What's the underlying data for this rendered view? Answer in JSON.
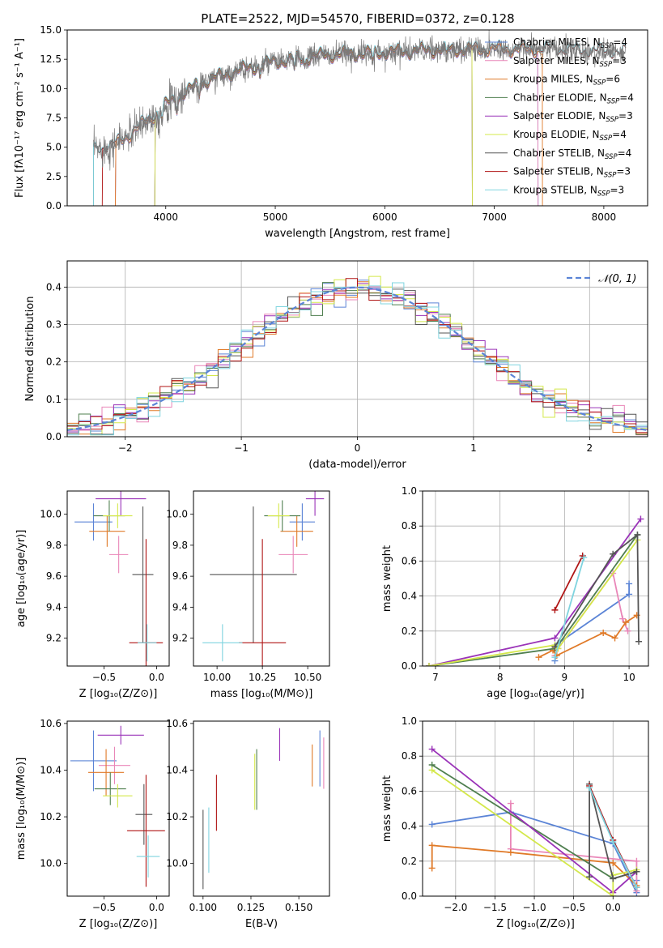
{
  "title": "PLATE=2522, MJD=54570, FIBERID=0372, z=0.128",
  "colors": {
    "chab_miles": "#5b84d6",
    "salp_miles": "#e986b8",
    "krou_miles": "#e07a28",
    "chab_elodie": "#4f7f4f",
    "salp_elodie": "#9a33b8",
    "krou_elodie": "#d4e84a",
    "chab_stelib": "#555555",
    "salp_stelib": "#b01515",
    "krou_stelib": "#7fd4df",
    "spectrum": "#7a7a7a"
  },
  "chart_data": [
    {
      "id": "spectrum",
      "type": "line",
      "xlabel": "wavelength [Angstrom, rest frame]",
      "ylabel": "Flux [fλ10⁻¹⁷ erg cm⁻² s⁻¹ A⁻¹]",
      "xlim": [
        3100,
        8400
      ],
      "ylim": [
        0,
        15
      ],
      "xticks": [
        4000,
        5000,
        6000,
        7000,
        8000
      ],
      "yticks": [
        0.0,
        2.5,
        5.0,
        7.5,
        10.0,
        12.5,
        15.0
      ],
      "legend_position": "top-right",
      "legend": [
        {
          "label": "Chabrier MILES, N",
          "sub": "SSP",
          "suffix": "=4",
          "color": "chab_miles"
        },
        {
          "label": "Salpeter MILES, N",
          "sub": "SSP",
          "suffix": "=3",
          "color": "salp_miles"
        },
        {
          "label": "Kroupa MILES, N",
          "sub": "SSP",
          "suffix": "=6",
          "color": "krou_miles"
        },
        {
          "label": "Chabrier ELODIE, N",
          "sub": "SSP",
          "suffix": "=4",
          "color": "chab_elodie"
        },
        {
          "label": "Salpeter ELODIE, N",
          "sub": "SSP",
          "suffix": "=3",
          "color": "salp_elodie"
        },
        {
          "label": "Kroupa ELODIE, N",
          "sub": "SSP",
          "suffix": "=4",
          "color": "krou_elodie"
        },
        {
          "label": "Chabrier STELIB, N",
          "sub": "SSP",
          "suffix": "=4",
          "color": "chab_stelib"
        },
        {
          "label": "Salpeter STELIB, N",
          "sub": "SSP",
          "suffix": "=3",
          "color": "salp_stelib"
        },
        {
          "label": "Kroupa STELIB, N",
          "sub": "SSP",
          "suffix": "=3",
          "color": "krou_stelib"
        }
      ],
      "continuum": {
        "x": [
          3340,
          3500,
          3700,
          4000,
          4300,
          4600,
          5000,
          5500,
          6000,
          6500,
          7000,
          7500,
          8000,
          8200
        ],
        "y": [
          4.8,
          5.0,
          6.3,
          8.6,
          10.4,
          11.4,
          12.3,
          12.9,
          13.1,
          13.3,
          13.4,
          13.3,
          13.1,
          13.0
        ]
      },
      "data_range": [
        3340,
        8200
      ],
      "model_ranges": {
        "chab_miles": [
          3540,
          7400
        ],
        "salp_miles": [
          3540,
          7400
        ],
        "krou_miles": [
          3540,
          7440
        ],
        "chab_elodie": [
          3900,
          6800
        ],
        "salp_elodie": [
          3900,
          6800
        ],
        "krou_elodie": [
          3900,
          6800
        ],
        "chab_stelib": [
          3340,
          8200
        ],
        "salp_stelib": [
          3420,
          8200
        ],
        "krou_stelib": [
          3340,
          8200
        ]
      }
    },
    {
      "id": "residual_hist",
      "type": "histogram",
      "xlabel": "(data-model)/error",
      "ylabel": "Normed distribution",
      "xlim": [
        -2.5,
        2.5
      ],
      "ylim": [
        0,
        0.47
      ],
      "xticks": [
        -2,
        -1,
        0,
        1,
        2
      ],
      "yticks": [
        0.0,
        0.1,
        0.2,
        0.3,
        0.4
      ],
      "bin_width": 0.1,
      "grid": true,
      "legend_position": "top-right",
      "gaussian_label": "𝒩(0, 1)",
      "gaussian_color": "#5b84d6"
    },
    {
      "id": "age_vs_Z",
      "type": "errorbar",
      "xlabel": "Z [log₁₀(Z/Z⊙)]",
      "ylabel": "age  [log₁₀(age/yr)]",
      "xlim": [
        -0.85,
        0.12
      ],
      "ylim": [
        9.02,
        10.15
      ],
      "xticks": [
        -0.5,
        0.0
      ],
      "yticks": [
        9.2,
        9.4,
        9.6,
        9.8,
        10.0
      ],
      "points": [
        {
          "c": "chab_miles",
          "x": -0.6,
          "xe": 0.18,
          "y": 9.95,
          "ye": 0.12
        },
        {
          "c": "salp_miles",
          "x": -0.36,
          "xe": 0.09,
          "y": 9.74,
          "ye": 0.12
        },
        {
          "c": "krou_miles",
          "x": -0.47,
          "xe": 0.17,
          "y": 9.89,
          "ye": 0.1
        },
        {
          "c": "chab_elodie",
          "x": -0.45,
          "xe": 0.15,
          "y": 9.99,
          "ye": 0.1
        },
        {
          "c": "salp_elodie",
          "x": -0.34,
          "xe": 0.24,
          "y": 10.1,
          "ye": 0.11
        },
        {
          "c": "krou_elodie",
          "x": -0.37,
          "xe": 0.14,
          "y": 9.99,
          "ye": 0.08
        },
        {
          "c": "chab_stelib",
          "x": -0.13,
          "xe": 0.1,
          "y": 9.61,
          "ye": 0.44
        },
        {
          "c": "salp_stelib",
          "x": -0.1,
          "xe": 0.16,
          "y": 9.17,
          "ye": 0.67
        },
        {
          "c": "krou_stelib",
          "x": -0.09,
          "xe": 0.09,
          "y": 9.17,
          "ye": 0.12
        }
      ]
    },
    {
      "id": "age_vs_mass",
      "type": "errorbar",
      "xlabel": "mass [log₁₀(M/M⊙)]",
      "ylabel": "",
      "xlim": [
        9.87,
        10.62
      ],
      "ylim": [
        9.02,
        10.15
      ],
      "xticks": [
        10.0,
        10.25,
        10.5
      ],
      "yticks": [
        9.2,
        9.4,
        9.6,
        9.8,
        10.0
      ],
      "points": [
        {
          "c": "chab_miles",
          "x": 10.47,
          "xe": 0.07,
          "y": 9.95,
          "ye": 0.12
        },
        {
          "c": "salp_miles",
          "x": 10.42,
          "xe": 0.08,
          "y": 9.74,
          "ye": 0.12
        },
        {
          "c": "krou_miles",
          "x": 10.44,
          "xe": 0.09,
          "y": 9.89,
          "ye": 0.1
        },
        {
          "c": "chab_elodie",
          "x": 10.36,
          "xe": 0.1,
          "y": 9.99,
          "ye": 0.1
        },
        {
          "c": "salp_elodie",
          "x": 10.54,
          "xe": 0.05,
          "y": 10.1,
          "ye": 0.11
        },
        {
          "c": "krou_elodie",
          "x": 10.34,
          "xe": 0.06,
          "y": 9.99,
          "ye": 0.08
        },
        {
          "c": "chab_stelib",
          "x": 10.2,
          "xe": 0.24,
          "y": 9.61,
          "ye": 0.44
        },
        {
          "c": "salp_stelib",
          "x": 10.25,
          "xe": 0.13,
          "y": 9.17,
          "ye": 0.67
        },
        {
          "c": "krou_stelib",
          "x": 10.03,
          "xe": 0.11,
          "y": 9.17,
          "ye": 0.12
        }
      ]
    },
    {
      "id": "massweight_vs_age",
      "type": "line",
      "xlabel": "age  [log₁₀(age/yr)]",
      "ylabel": "mass weight",
      "xlim": [
        6.8,
        10.3
      ],
      "ylim": [
        0,
        1
      ],
      "xticks": [
        7,
        8,
        9,
        10
      ],
      "yticks": [
        0.0,
        0.2,
        0.4,
        0.6,
        0.8,
        1.0
      ],
      "grid": true,
      "series": [
        {
          "c": "chab_miles",
          "x": [
            8.85,
            8.9,
            10.0,
            10.0
          ],
          "y": [
            0.03,
            0.13,
            0.41,
            0.47
          ]
        },
        {
          "c": "salp_miles",
          "x": [
            8.85,
            8.9,
            9.75,
            9.9,
            9.98
          ],
          "y": [
            0.06,
            0.1,
            0.53,
            0.27,
            0.2
          ]
        },
        {
          "c": "krou_miles",
          "x": [
            8.6,
            8.82,
            8.88,
            9.6,
            9.78,
            9.95,
            10.12
          ],
          "y": [
            0.05,
            0.09,
            0.06,
            0.19,
            0.16,
            0.25,
            0.29
          ]
        },
        {
          "c": "chab_elodie",
          "x": [
            6.9,
            8.85,
            8.9,
            10.13
          ],
          "y": [
            0.0,
            0.1,
            0.12,
            0.75
          ]
        },
        {
          "c": "salp_elodie",
          "x": [
            6.9,
            8.85,
            10.18
          ],
          "y": [
            0.0,
            0.16,
            0.84
          ]
        },
        {
          "c": "krou_elodie",
          "x": [
            6.9,
            8.85,
            8.9,
            10.13
          ],
          "y": [
            0.0,
            0.12,
            0.1,
            0.72
          ]
        },
        {
          "c": "chab_stelib",
          "x": [
            8.85,
            9.75,
            10.13,
            10.15
          ],
          "y": [
            0.11,
            0.64,
            0.75,
            0.14
          ]
        },
        {
          "c": "salp_stelib",
          "x": [
            8.85,
            9.28
          ],
          "y": [
            0.32,
            0.63
          ]
        },
        {
          "c": "krou_stelib",
          "x": [
            8.85,
            9.3
          ],
          "y": [
            0.05,
            0.62
          ]
        }
      ]
    },
    {
      "id": "mass_vs_Z",
      "type": "errorbar",
      "xlabel": "Z [log₁₀(Z/Z⊙)]",
      "ylabel": "mass [log₁₀(M/M⊙)]",
      "xlim": [
        -0.85,
        0.12
      ],
      "ylim": [
        9.86,
        10.61
      ],
      "xticks": [
        -0.5,
        0.0
      ],
      "yticks": [
        10.0,
        10.2,
        10.4,
        10.6
      ],
      "points": [
        {
          "c": "chab_miles",
          "x": -0.6,
          "xe": 0.22,
          "y": 10.44,
          "ye": 0.13
        },
        {
          "c": "salp_miles",
          "x": -0.4,
          "xe": 0.15,
          "y": 10.42,
          "ye": 0.08
        },
        {
          "c": "krou_miles",
          "x": -0.48,
          "xe": 0.17,
          "y": 10.39,
          "ye": 0.1
        },
        {
          "c": "chab_elodie",
          "x": -0.44,
          "xe": 0.15,
          "y": 10.32,
          "ye": 0.07
        },
        {
          "c": "salp_elodie",
          "x": -0.34,
          "xe": 0.22,
          "y": 10.55,
          "ye": 0.04
        },
        {
          "c": "krou_elodie",
          "x": -0.37,
          "xe": 0.14,
          "y": 10.29,
          "ye": 0.05
        },
        {
          "c": "chab_stelib",
          "x": -0.12,
          "xe": 0.08,
          "y": 10.21,
          "ye": 0.13
        },
        {
          "c": "salp_stelib",
          "x": -0.1,
          "xe": 0.18,
          "y": 10.14,
          "ye": 0.24
        },
        {
          "c": "krou_stelib",
          "x": -0.08,
          "xe": 0.11,
          "y": 10.03,
          "ye": 0.09
        }
      ]
    },
    {
      "id": "mass_vs_ebv",
      "type": "errorbar",
      "xlabel": "E(B-V)",
      "ylabel": "",
      "xlim": [
        0.095,
        0.166
      ],
      "ylim": [
        9.86,
        10.61
      ],
      "xticks": [
        0.1,
        0.125,
        0.15
      ],
      "yticks": [
        10.0,
        10.2,
        10.4,
        10.6
      ],
      "points": [
        {
          "c": "chab_miles",
          "x": 0.161,
          "xe": 0.0,
          "y": 10.45,
          "ye": 0.12
        },
        {
          "c": "salp_miles",
          "x": 0.163,
          "xe": 0.0,
          "y": 10.43,
          "ye": 0.11
        },
        {
          "c": "krou_miles",
          "x": 0.157,
          "xe": 0.0,
          "y": 10.42,
          "ye": 0.09
        },
        {
          "c": "chab_elodie",
          "x": 0.128,
          "xe": 0.0,
          "y": 10.36,
          "ye": 0.13
        },
        {
          "c": "salp_elodie",
          "x": 0.14,
          "xe": 0.0,
          "y": 10.51,
          "ye": 0.07
        },
        {
          "c": "krou_elodie",
          "x": 0.127,
          "xe": 0.0,
          "y": 10.35,
          "ye": 0.12
        },
        {
          "c": "chab_stelib",
          "x": 0.1,
          "xe": 0.0,
          "y": 10.06,
          "ye": 0.17
        },
        {
          "c": "salp_stelib",
          "x": 0.107,
          "xe": 0.0,
          "y": 10.26,
          "ye": 0.12
        },
        {
          "c": "krou_stelib",
          "x": 0.103,
          "xe": 0.0,
          "y": 10.1,
          "ye": 0.14
        }
      ]
    },
    {
      "id": "massweight_vs_Z",
      "type": "line",
      "xlabel": "Z [log₁₀(Z/Z⊙)]",
      "ylabel": "mass weight",
      "xlim": [
        -2.42,
        0.45
      ],
      "ylim": [
        0,
        1
      ],
      "xticks": [
        -2.0,
        -1.5,
        -1.0,
        -0.5,
        0.0
      ],
      "yticks": [
        0.0,
        0.2,
        0.4,
        0.6,
        0.8,
        1.0
      ],
      "grid": true,
      "series": [
        {
          "c": "chab_miles",
          "x": [
            -2.3,
            -1.3,
            0.0,
            0.3,
            0.3
          ],
          "y": [
            0.41,
            0.48,
            0.3,
            0.02,
            0.09
          ]
        },
        {
          "c": "salp_miles",
          "x": [
            -1.3,
            -1.3,
            0.3,
            0.3
          ],
          "y": [
            0.53,
            0.27,
            0.2,
            0.03
          ]
        },
        {
          "c": "krou_miles",
          "x": [
            -2.3,
            -2.3,
            -1.3,
            0.0,
            0.3
          ],
          "y": [
            0.16,
            0.29,
            0.25,
            0.19,
            0.06
          ]
        },
        {
          "c": "chab_elodie",
          "x": [
            -2.3,
            0.0,
            0.3
          ],
          "y": [
            0.75,
            0.1,
            0.14
          ]
        },
        {
          "c": "salp_elodie",
          "x": [
            -2.3,
            0.0,
            0.3
          ],
          "y": [
            0.84,
            0.02,
            0.14
          ]
        },
        {
          "c": "krou_elodie",
          "x": [
            -2.3,
            0.0,
            0.0,
            0.3
          ],
          "y": [
            0.72,
            0.0,
            0.12,
            0.15
          ]
        },
        {
          "c": "chab_stelib",
          "x": [
            -0.3,
            -0.3,
            0.0,
            0.3
          ],
          "y": [
            0.11,
            0.64,
            0.1,
            0.14
          ]
        },
        {
          "c": "salp_stelib",
          "x": [
            -0.3,
            0.0,
            0.3
          ],
          "y": [
            0.63,
            0.32,
            0.05
          ]
        },
        {
          "c": "krou_stelib",
          "x": [
            -0.3,
            0.0,
            0.3
          ],
          "y": [
            0.62,
            0.31,
            0.05
          ]
        }
      ]
    }
  ]
}
